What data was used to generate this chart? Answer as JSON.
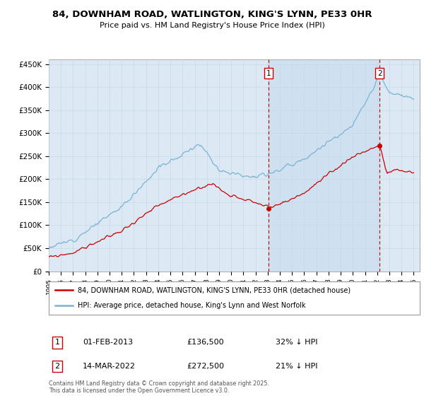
{
  "title": "84, DOWNHAM ROAD, WATLINGTON, KING'S LYNN, PE33 0HR",
  "subtitle": "Price paid vs. HM Land Registry's House Price Index (HPI)",
  "ylabel_ticks": [
    "£0",
    "£50K",
    "£100K",
    "£150K",
    "£200K",
    "£250K",
    "£300K",
    "£350K",
    "£400K",
    "£450K"
  ],
  "ytick_values": [
    0,
    50000,
    100000,
    150000,
    200000,
    250000,
    300000,
    350000,
    400000,
    450000
  ],
  "ylim": [
    0,
    460000
  ],
  "xlim_start": 1995.0,
  "xlim_end": 2025.5,
  "purchase1_date": 2013.08,
  "purchase1_price": 136500,
  "purchase2_date": 2022.2,
  "purchase2_price": 272500,
  "legend_line1": "84, DOWNHAM ROAD, WATLINGTON, KING'S LYNN, PE33 0HR (detached house)",
  "legend_line2": "HPI: Average price, detached house, King's Lynn and West Norfolk",
  "footer": "Contains HM Land Registry data © Crown copyright and database right 2025.\nThis data is licensed under the Open Government Licence v3.0.",
  "hpi_color": "#7ab3d4",
  "price_color": "#cc0000",
  "vline_color": "#cc0000",
  "shade_color": "#d0e4f5",
  "background_color": "#dce9f5",
  "plot_bg": "#ffffff",
  "grid_color": "#c8d8e8"
}
